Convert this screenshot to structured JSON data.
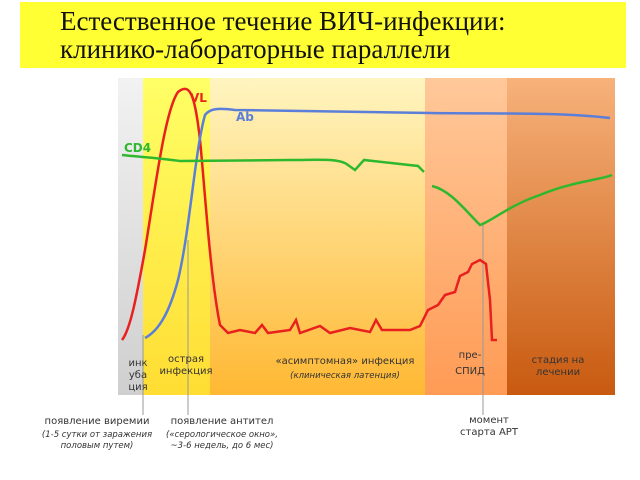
{
  "header": {
    "title": [
      "Естественное течение ВИЧ-инфекции:",
      "клинико-лабораторные параллели"
    ]
  },
  "curves": {
    "vl": "VL",
    "ab": "Ab",
    "cd4": "CD4"
  },
  "stages": [
    {
      "label": [
        "инк",
        "уба",
        "ция"
      ]
    },
    {
      "label": [
        "острая",
        "инфекция"
      ]
    },
    {
      "label": [
        "«асимптомная» инфекция"
      ],
      "note": "(клиническая латенция)"
    },
    {
      "label": [
        "пре-",
        "СПИД"
      ]
    },
    {
      "label": [
        "стадия на",
        "лечении"
      ]
    }
  ],
  "events": [
    {
      "label": "появление виремии",
      "note": [
        "(1-5 сутки от заражения",
        "половым путем)"
      ]
    },
    {
      "label": "появление антител",
      "note": [
        "(«серологическое окно»,",
        "~3-6 недель, до 6 мес)"
      ]
    },
    {
      "label": [
        "момент",
        "старта АРТ"
      ]
    }
  ]
}
